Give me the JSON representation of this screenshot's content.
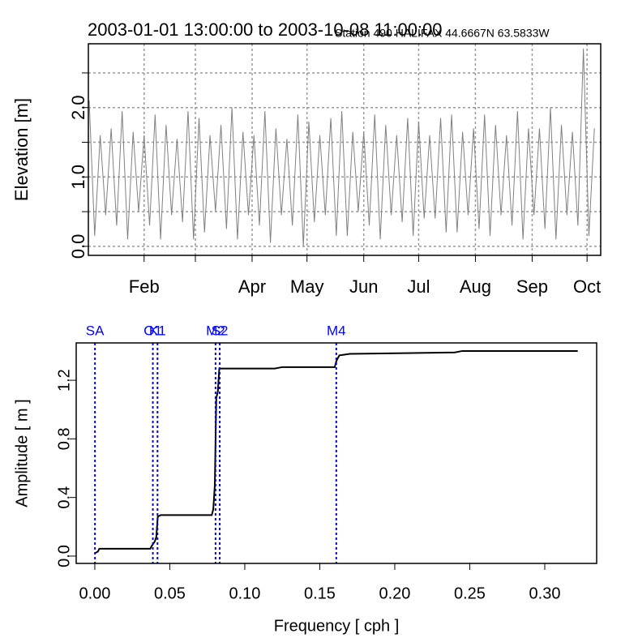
{
  "chart_data": [
    {
      "type": "line",
      "title": "2003-01-01 13:00:00 to 2003-10-08 11:00:00",
      "subtitle": "Station 490 HALIFAX 44.6667N 63.5833W",
      "y_label": "Elevation [m]",
      "color": "#808080",
      "x": [
        "2003-01-02",
        "2003-01-05",
        "2003-01-08",
        "2003-01-11",
        "2003-01-14",
        "2003-01-17",
        "2003-01-20",
        "2003-01-23",
        "2003-01-26",
        "2003-01-29",
        "2003-02-01",
        "2003-02-04",
        "2003-02-07",
        "2003-02-10",
        "2003-02-13",
        "2003-02-16",
        "2003-02-19",
        "2003-02-22",
        "2003-02-25",
        "2003-02-28",
        "2003-03-03",
        "2003-03-06",
        "2003-03-09",
        "2003-03-12",
        "2003-03-15",
        "2003-03-18",
        "2003-03-21",
        "2003-03-24",
        "2003-03-27",
        "2003-03-30",
        "2003-04-02",
        "2003-04-05",
        "2003-04-08",
        "2003-04-11",
        "2003-04-14",
        "2003-04-17",
        "2003-04-20",
        "2003-04-23",
        "2003-04-26",
        "2003-04-29",
        "2003-05-02",
        "2003-05-05",
        "2003-05-08",
        "2003-05-11",
        "2003-05-14",
        "2003-05-17",
        "2003-05-20",
        "2003-05-23",
        "2003-05-26",
        "2003-05-29",
        "2003-06-01",
        "2003-06-04",
        "2003-06-07",
        "2003-06-10",
        "2003-06-13",
        "2003-06-16",
        "2003-06-19",
        "2003-06-22",
        "2003-06-25",
        "2003-06-28",
        "2003-07-01",
        "2003-07-04",
        "2003-07-07",
        "2003-07-10",
        "2003-07-13",
        "2003-07-16",
        "2003-07-19",
        "2003-07-22",
        "2003-07-25",
        "2003-07-28",
        "2003-07-31",
        "2003-08-03",
        "2003-08-06",
        "2003-08-09",
        "2003-08-12",
        "2003-08-15",
        "2003-08-18",
        "2003-08-21",
        "2003-08-24",
        "2003-08-27",
        "2003-08-30",
        "2003-09-02",
        "2003-09-05",
        "2003-09-08",
        "2003-09-11",
        "2003-09-14",
        "2003-09-17",
        "2003-09-20",
        "2003-09-23",
        "2003-09-26",
        "2003-09-29",
        "2003-10-02",
        "2003-10-05"
      ],
      "values": [
        2.1,
        0.15,
        1.6,
        0.45,
        1.7,
        0.3,
        1.95,
        0.1,
        1.65,
        0.5,
        1.6,
        0.3,
        1.9,
        0.1,
        1.75,
        0.45,
        1.55,
        0.35,
        1.95,
        0.1,
        1.85,
        0.2,
        1.6,
        0.5,
        1.75,
        0.25,
        2.0,
        0.1,
        1.65,
        0.45,
        1.6,
        0.3,
        1.95,
        0.05,
        1.7,
        0.45,
        1.55,
        0.3,
        1.9,
        0.0,
        1.8,
        0.35,
        1.6,
        0.45,
        1.85,
        0.15,
        1.95,
        0.15,
        1.65,
        0.5,
        1.65,
        0.3,
        1.9,
        0.1,
        1.75,
        0.45,
        1.6,
        0.35,
        1.85,
        0.15,
        1.8,
        0.4,
        1.6,
        0.4,
        1.85,
        0.2,
        1.9,
        0.2,
        1.65,
        0.45,
        1.7,
        0.25,
        1.9,
        0.15,
        1.75,
        0.45,
        1.6,
        0.3,
        1.95,
        0.1,
        1.7,
        0.45,
        1.7,
        0.25,
        2.0,
        0.1,
        1.75,
        0.45,
        1.65,
        0.3,
        2.85,
        0.15,
        1.7
      ],
      "xlim": [
        "2003-01-01 13:00:00",
        "2003-10-08 11:00:00"
      ],
      "xticks": [
        {
          "value": "2003-02-01",
          "label": "Feb"
        },
        {
          "value": "2003-03-01",
          "label": null
        },
        {
          "value": "2003-04-01",
          "label": "Apr"
        },
        {
          "value": "2003-05-01",
          "label": "May"
        },
        {
          "value": "2003-06-01",
          "label": "Jun"
        },
        {
          "value": "2003-07-01",
          "label": "Jul"
        },
        {
          "value": "2003-08-01",
          "label": "Aug"
        },
        {
          "value": "2003-09-01",
          "label": "Sep"
        },
        {
          "value": "2003-10-01",
          "label": "Oct"
        }
      ],
      "ylim": [
        -0.13,
        2.92
      ],
      "yticks": [
        {
          "value": 0,
          "label": "0.0"
        },
        {
          "value": 0.5,
          "label": null
        },
        {
          "value": 1,
          "label": "1.0"
        },
        {
          "value": 1.5,
          "label": null
        },
        {
          "value": 2,
          "label": "2.0"
        },
        {
          "value": 2.5,
          "label": null
        }
      ],
      "grid": true
    },
    {
      "type": "line",
      "x_label": "Frequency [ cph ]",
      "y_label": "Amplitude [ m ]",
      "color": "#000000",
      "x": [
        0.0,
        0.002,
        0.003,
        0.037,
        0.038,
        0.04,
        0.041,
        0.042,
        0.044,
        0.078,
        0.079,
        0.08,
        0.081,
        0.082,
        0.083,
        0.12,
        0.125,
        0.16,
        0.161,
        0.163,
        0.17,
        0.24,
        0.245,
        0.322
      ],
      "values": [
        0.02,
        0.03,
        0.05,
        0.05,
        0.07,
        0.1,
        0.13,
        0.27,
        0.28,
        0.28,
        0.32,
        0.48,
        1.08,
        1.12,
        1.28,
        1.28,
        1.29,
        1.29,
        1.33,
        1.37,
        1.38,
        1.39,
        1.4,
        1.4
      ],
      "xlim": [
        -0.0124,
        0.3346
      ],
      "xticks": [
        {
          "value": 0,
          "label": "0.00"
        },
        {
          "value": 0.05,
          "label": "0.05"
        },
        {
          "value": 0.1,
          "label": "0.10"
        },
        {
          "value": 0.15,
          "label": "0.15"
        },
        {
          "value": 0.2,
          "label": "0.20"
        },
        {
          "value": 0.25,
          "label": "0.25"
        },
        {
          "value": 0.3,
          "label": "0.30"
        }
      ],
      "ylim": [
        -0.05,
        1.455
      ],
      "yticks": [
        {
          "value": 0,
          "label": "0.0"
        },
        {
          "value": 0.4,
          "label": "0.4"
        },
        {
          "value": 0.8,
          "label": "0.8"
        },
        {
          "value": 1.2,
          "label": "1.2"
        }
      ],
      "grid": false,
      "constituents": {
        "names": [
          "SA",
          "O1",
          "K1",
          "M2",
          "S2",
          "M4"
        ],
        "x": [
          0.000114,
          0.0387,
          0.0418,
          0.0805,
          0.0833,
          0.161
        ],
        "color": "#0000ff"
      }
    }
  ]
}
